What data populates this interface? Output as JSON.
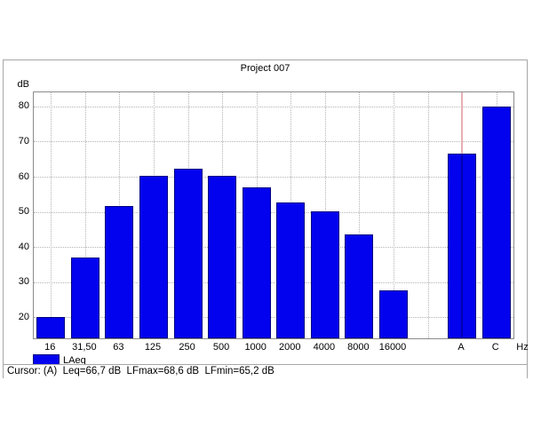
{
  "panel": {
    "title": "Project 007"
  },
  "chart_data": {
    "type": "bar",
    "title": "Project 007",
    "series_name": "LAeq",
    "y_unit": "dB",
    "x_unit": "Hz",
    "ylim": [
      14,
      84
    ],
    "yticks": [
      20,
      30,
      40,
      50,
      60,
      70,
      80
    ],
    "slots": 14,
    "grid": true,
    "legend_position": "bottom-left",
    "bars": [
      {
        "label": "16",
        "slot": 0,
        "value": 20.0
      },
      {
        "label": "31,50",
        "slot": 1,
        "value": 37.0
      },
      {
        "label": "63",
        "slot": 2,
        "value": 51.7
      },
      {
        "label": "125",
        "slot": 3,
        "value": 60.2
      },
      {
        "label": "250",
        "slot": 4,
        "value": 62.3
      },
      {
        "label": "500",
        "slot": 5,
        "value": 60.2
      },
      {
        "label": "1000",
        "slot": 6,
        "value": 56.9
      },
      {
        "label": "2000",
        "slot": 7,
        "value": 52.7
      },
      {
        "label": "4000",
        "slot": 8,
        "value": 50.1
      },
      {
        "label": "8000",
        "slot": 9,
        "value": 43.5
      },
      {
        "label": "16000",
        "slot": 10,
        "value": 27.6
      },
      {
        "label": "A",
        "slot": 12,
        "value": 66.7
      },
      {
        "label": "C",
        "slot": 13,
        "value": 80.0
      }
    ],
    "cursor": {
      "bar": "A"
    }
  },
  "colors": {
    "bar_fill": "#0202ee",
    "bar_border": "#000080",
    "grid_line": "#b4b4b4",
    "plot_border": "#8c8c8c",
    "panel_border": "#a6a6a6",
    "cursor_line": "#e6b0b4",
    "cursor_on_bar": "#0000b0",
    "text": "#000000"
  },
  "legend": {
    "label": "LAeq"
  },
  "status": {
    "text": "Cursor: (A)  Leq=66,7 dB  LFmax=68,6 dB  LFmin=65,2 dB"
  }
}
